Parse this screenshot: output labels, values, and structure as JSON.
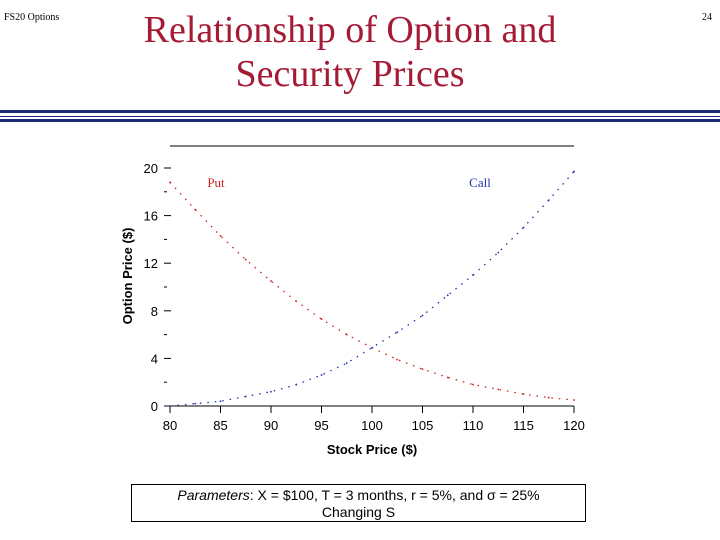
{
  "header": {
    "left_label": "FS20 Options",
    "page_number": "24",
    "title_line1": "Relationship of Option and",
    "title_line2": "Security Prices"
  },
  "caption": {
    "line1_italic": "Parameters",
    "line1_rest": ":  X = $100, T = 3 months, r = 5%, and σ = 25%",
    "line2": "Changing S"
  },
  "colors": {
    "title": "#a51a35",
    "put": "#cc2222",
    "call": "#2233aa"
  },
  "chart_data": {
    "type": "line",
    "xlabel": "Stock Price ($)",
    "ylabel": "Option Price ($)",
    "x_ticks": [
      "80",
      "85",
      "90",
      "95",
      "100",
      "105",
      "110",
      "115",
      "120"
    ],
    "y_ticks": [
      "0",
      "4",
      "8",
      "12",
      "16",
      "20"
    ],
    "xlim": [
      80,
      120
    ],
    "ylim": [
      0,
      20
    ],
    "grid": false,
    "x": [
      80,
      82.5,
      85,
      87.5,
      90,
      92.5,
      95,
      97.5,
      100,
      102.5,
      105,
      107.5,
      110,
      112.5,
      115,
      117.5,
      120
    ],
    "series": [
      {
        "name": "Put",
        "values": [
          18.8,
          16.5,
          14.3,
          12.3,
          10.5,
          8.8,
          7.3,
          6.0,
          4.9,
          3.9,
          3.1,
          2.4,
          1.8,
          1.4,
          1.0,
          0.7,
          0.5
        ]
      },
      {
        "name": "Call",
        "values": [
          0.0,
          0.2,
          0.4,
          0.8,
          1.2,
          1.8,
          2.6,
          3.6,
          4.9,
          6.2,
          7.6,
          9.3,
          11.0,
          12.9,
          15.0,
          17.3,
          19.7
        ]
      }
    ]
  }
}
